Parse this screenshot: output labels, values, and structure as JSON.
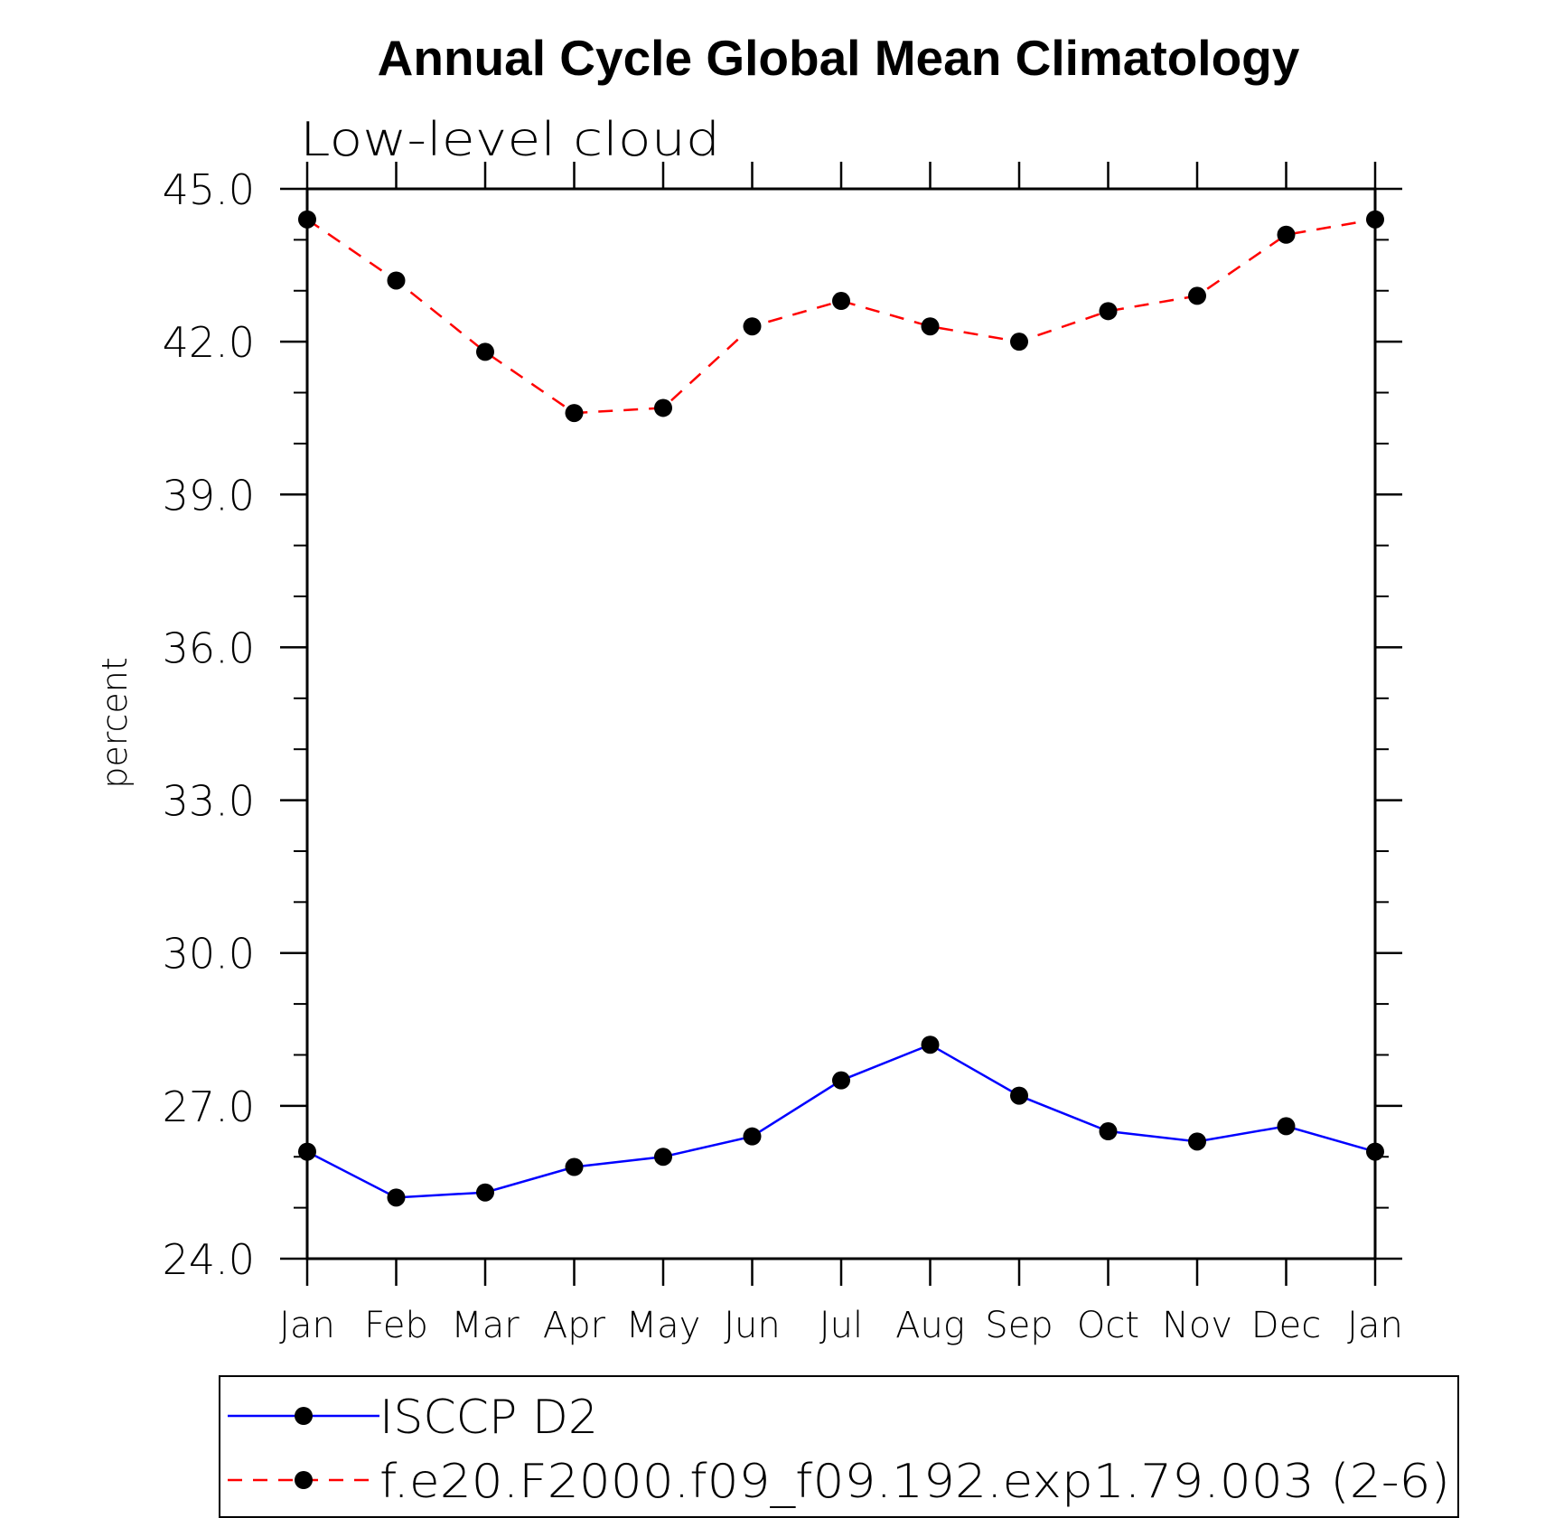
{
  "chart_data": {
    "type": "line",
    "title": "Annual Cycle Global Mean Climatology",
    "subtitle": "Low-level cloud",
    "xlabel": "",
    "ylabel": "percent",
    "ylim": [
      24.0,
      45.0
    ],
    "yticks": [
      "24.0",
      "27.0",
      "30.0",
      "33.0",
      "36.0",
      "39.0",
      "42.0",
      "45.0"
    ],
    "categories": [
      "Jan",
      "Feb",
      "Mar",
      "Apr",
      "May",
      "Jun",
      "Jul",
      "Aug",
      "Sep",
      "Oct",
      "Nov",
      "Dec",
      "Jan"
    ],
    "grid": false,
    "legend_position": "bottom",
    "series": [
      {
        "name": "ISCCP D2",
        "color": "#0000ff",
        "line_style": "solid",
        "marker": "filled-circle",
        "values": [
          26.1,
          25.2,
          25.3,
          25.8,
          26.0,
          26.4,
          27.5,
          28.2,
          27.2,
          26.5,
          26.3,
          26.6,
          26.1
        ]
      },
      {
        "name": "f.e20.F2000.f09_f09.192.exp1.79.003 (2-6)",
        "color": "#ff0000",
        "line_style": "dashed",
        "marker": "filled-circle",
        "values": [
          44.4,
          43.2,
          41.8,
          40.6,
          40.7,
          42.3,
          42.8,
          42.3,
          42.0,
          42.6,
          42.9,
          44.1,
          44.4
        ]
      }
    ]
  }
}
